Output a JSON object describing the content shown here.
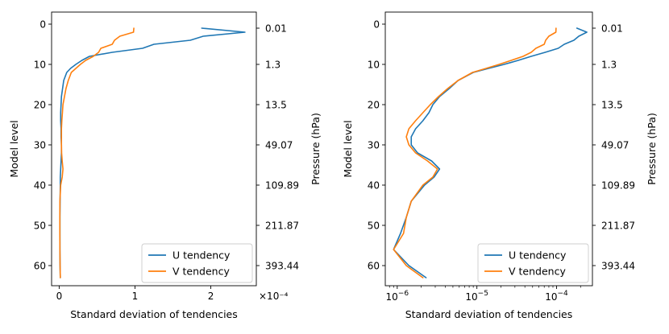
{
  "chart_data": [
    {
      "type": "line",
      "xscale": "linear",
      "xlabel": "Standard deviation of tendencies",
      "ylabel_left": "Model level",
      "ylabel_right": "Pressure (hPa)",
      "x_offset_label": "×10⁻⁴",
      "xlim": [
        -1e-05,
        0.00026
      ],
      "ylim": [
        65,
        -3
      ],
      "xticks": [
        {
          "value": 0,
          "label": "0"
        },
        {
          "value": 0.0001,
          "label": "1"
        },
        {
          "value": 0.0002,
          "label": "2"
        }
      ],
      "yticks_left": [
        0,
        10,
        20,
        30,
        40,
        50,
        60
      ],
      "yticks_right": [
        {
          "level": 1,
          "label": "0.01"
        },
        {
          "level": 10,
          "label": "1.3"
        },
        {
          "level": 20,
          "label": "13.5"
        },
        {
          "level": 30,
          "label": "49.07"
        },
        {
          "level": 40,
          "label": "109.89"
        },
        {
          "level": 50,
          "label": "211.87"
        },
        {
          "level": 60,
          "label": "393.44"
        }
      ],
      "legend_position": "lower right",
      "series": [
        {
          "name": "U tendency",
          "color": "#1f77b4",
          "x": [
            0.000188,
            0.000245,
            0.00019,
            0.000173,
            0.000125,
            0.00011,
            7e-05,
            4e-05,
            3e-05,
            2.2e-05,
            1.5e-05,
            1e-05,
            6e-06,
            4.5e-06,
            3e-06,
            2.5e-06,
            2e-06,
            2e-06,
            2.5e-06,
            2.5e-06,
            3e-06,
            3e-06,
            2.5e-06,
            2e-06,
            1.5e-06,
            1.5e-06,
            1.2e-06,
            1e-06,
            1e-06,
            1e-06,
            1.2e-06,
            1.5e-06
          ],
          "y": [
            1,
            2,
            3,
            4,
            5,
            6,
            7,
            8,
            9,
            10,
            11,
            12,
            14,
            16,
            18,
            20,
            22,
            24,
            26,
            28,
            30,
            32,
            34,
            36,
            38,
            40,
            44,
            48,
            52,
            56,
            60,
            63
          ]
        },
        {
          "name": "V tendency",
          "color": "#ff7f0e",
          "x": [
            9.85e-05,
            9.8e-05,
            8e-05,
            7.3e-05,
            7e-05,
            5.5e-05,
            5.2e-05,
            4.5e-05,
            3.5e-05,
            2.8e-05,
            2.2e-05,
            1.6e-05,
            1.2e-05,
            9e-06,
            7e-06,
            5e-06,
            4.3e-06,
            3.5e-06,
            3e-06,
            3e-06,
            3e-06,
            3.2e-06,
            4e-06,
            5e-06,
            4e-06,
            2e-06,
            1e-06,
            9e-07,
            9e-07,
            1e-06,
            1.2e-06,
            1.5e-06
          ],
          "y": [
            1,
            2,
            3,
            4,
            5,
            6,
            7,
            8,
            9,
            10,
            11,
            12,
            14,
            16,
            18,
            20,
            22,
            24,
            26,
            28,
            30,
            32,
            34,
            36,
            38,
            40,
            44,
            48,
            52,
            56,
            60,
            63
          ]
        }
      ]
    },
    {
      "type": "line",
      "xscale": "log",
      "xlabel": "Standard deviation of tendencies",
      "ylabel_left": "Model level",
      "ylabel_right": "Pressure (hPa)",
      "xlim_log10": [
        -6.15,
        -3.55
      ],
      "ylim": [
        65,
        -3
      ],
      "xticks": [
        {
          "exp": -6,
          "base": "10",
          "sup": "−6"
        },
        {
          "exp": -5,
          "base": "10",
          "sup": "−5"
        },
        {
          "exp": -4,
          "base": "10",
          "sup": "−4"
        }
      ],
      "yticks_left": [
        0,
        10,
        20,
        30,
        40,
        50,
        60
      ],
      "yticks_right": [
        {
          "level": 1,
          "label": "0.01"
        },
        {
          "level": 10,
          "label": "1.3"
        },
        {
          "level": 20,
          "label": "13.5"
        },
        {
          "level": 30,
          "label": "49.07"
        },
        {
          "level": 40,
          "label": "109.89"
        },
        {
          "level": 50,
          "label": "211.87"
        },
        {
          "level": 60,
          "label": "393.44"
        }
      ],
      "legend_position": "lower right",
      "series": [
        {
          "name": "U tendency",
          "color": "#1f77b4",
          "x": [
            0.00018,
            0.00024,
            0.00019,
            0.000165,
            0.000125,
            0.000105,
            7.2e-05,
            4.8e-05,
            3.3e-05,
            2.2e-05,
            1.4e-05,
            9e-06,
            5.8e-06,
            4.5e-06,
            3.4e-06,
            2.8e-06,
            2.5e-06,
            2.1e-06,
            1.7e-06,
            1.5e-06,
            1.5e-06,
            1.8e-06,
            2.7e-06,
            3.4e-06,
            2.9e-06,
            2.2e-06,
            1.5e-06,
            1.3e-06,
            1.1e-06,
            9e-07,
            1.4e-06,
            2.3e-06
          ],
          "y": [
            1,
            2,
            3,
            4,
            5,
            6,
            7,
            8,
            9,
            10,
            11,
            12,
            14,
            16,
            18,
            20,
            22,
            24,
            26,
            28,
            30,
            32,
            34,
            36,
            38,
            40,
            44,
            48,
            52,
            56,
            60,
            63
          ]
        },
        {
          "name": "V tendency",
          "color": "#ff7f0e",
          "x": [
            9.85e-05,
            9.8e-05,
            8e-05,
            7.3e-05,
            7e-05,
            5.5e-05,
            4.8e-05,
            3.8e-05,
            2.7e-05,
            1.9e-05,
            1.3e-05,
            8.8e-06,
            5.8e-06,
            4.3e-06,
            3.3e-06,
            2.6e-06,
            2.1e-06,
            1.7e-06,
            1.4e-06,
            1.3e-06,
            1.4e-06,
            1.7e-06,
            2.4e-06,
            3.2e-06,
            2.8e-06,
            2.1e-06,
            1.5e-06,
            1.3e-06,
            1.2e-06,
            9e-07,
            1.3e-06,
            2.1e-06
          ],
          "y": [
            1,
            2,
            3,
            4,
            5,
            6,
            7,
            8,
            9,
            10,
            11,
            12,
            14,
            16,
            18,
            20,
            22,
            24,
            26,
            28,
            30,
            32,
            34,
            36,
            38,
            40,
            44,
            48,
            52,
            56,
            60,
            63
          ]
        }
      ]
    }
  ]
}
